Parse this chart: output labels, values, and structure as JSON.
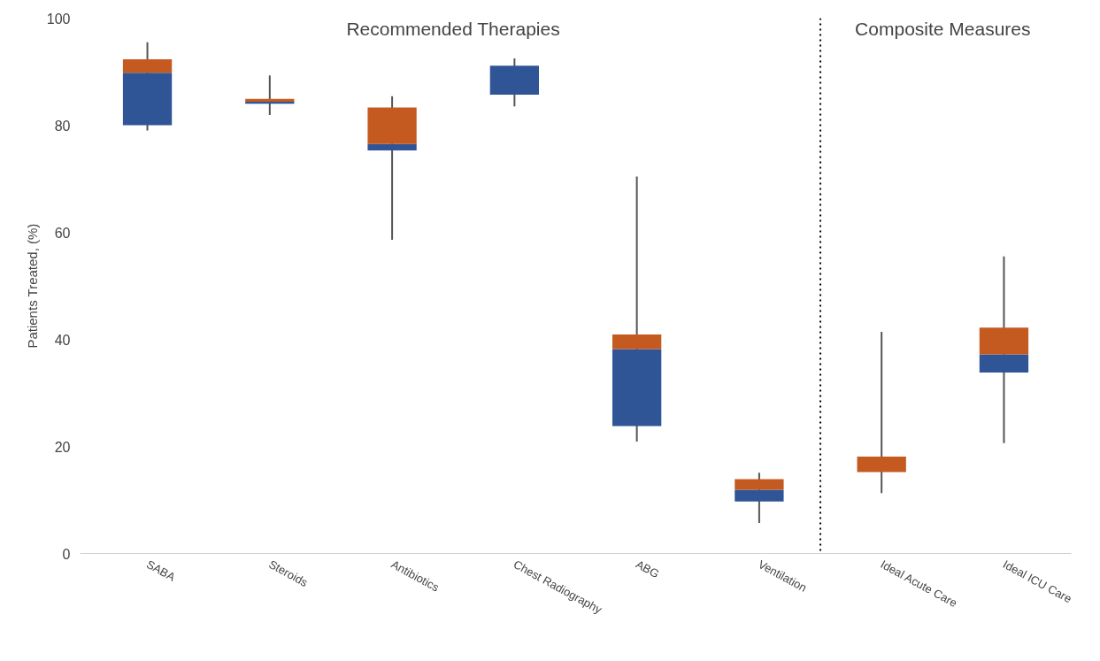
{
  "chart_data": {
    "type": "box",
    "ylabel": "Patients Treated, (%)",
    "categories": [
      "SABA",
      "Steroids",
      "Antibiotics",
      "Chest Radiography",
      "ABG",
      "Ventilation",
      "Ideal Acute Care",
      "Ideal ICU Care"
    ],
    "boxes": [
      {
        "low": 79,
        "q1": 80,
        "median": 89.8,
        "q3": 92.3,
        "high": 95.5
      },
      {
        "low": 81.9,
        "q1": 84,
        "median": 84.4,
        "q3": 84.9,
        "high": 89.3
      },
      {
        "low": 58.6,
        "q1": 75.3,
        "median": 76.5,
        "q3": 83.3,
        "high": 85.4
      },
      {
        "low": 83.5,
        "q1": 85.7,
        "median": 91.1,
        "q3": 91.1,
        "high": 92.5
      },
      {
        "low": 20.9,
        "q1": 23.8,
        "median": 38.2,
        "q3": 40.9,
        "high": 70.4
      },
      {
        "low": 5.7,
        "q1": 9.7,
        "median": 11.9,
        "q3": 13.9,
        "high": 15.1
      },
      {
        "low": 11.3,
        "q1": 15.2,
        "median": 15.2,
        "q3": 18.1,
        "high": 41.4
      },
      {
        "low": 20.6,
        "q1": 33.8,
        "median": 37.2,
        "q3": 42.2,
        "high": 55.5
      }
    ],
    "colors": [
      [
        "#2f5597",
        "#c55a21"
      ],
      [
        "#2f5597",
        "#c55a21"
      ],
      [
        "#2f5597",
        "#c55a21"
      ],
      [
        "#2f5597",
        "#c55a21"
      ],
      [
        "#2f5597",
        "#c55a21"
      ],
      [
        "#2f5597",
        "#c55a21"
      ],
      [
        "#2f5597",
        "#c55a21"
      ],
      [
        "#2f5597",
        "#c55a21"
      ]
    ],
    "ylim": [
      0,
      100
    ],
    "yticks": [
      0,
      20,
      40,
      60,
      80,
      100
    ],
    "grid": false,
    "annotations": [
      "Recommended Therapies",
      "Composite Measures"
    ]
  }
}
